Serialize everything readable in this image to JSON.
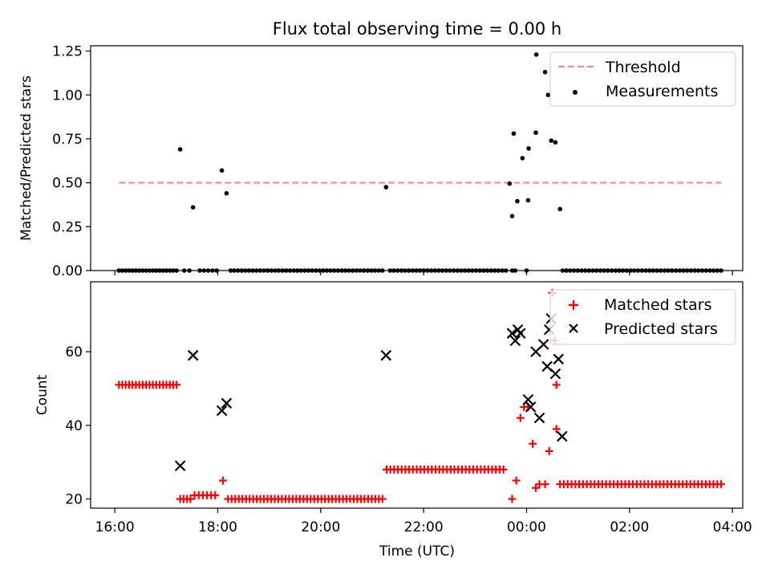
{
  "figure": {
    "title": "Flux total observing time = 0.00 h"
  },
  "chart_data": [
    {
      "type": "scatter",
      "ylabel": "Matched/Predicted stars",
      "xlabel": "",
      "ylim": [
        0,
        1.28
      ],
      "xlim": [
        15.53,
        28.2
      ],
      "y_ticks": [
        0,
        0.25,
        0.5,
        0.75,
        1.0,
        1.25
      ],
      "y_tick_labels": [
        "0.00",
        "0.25",
        "0.50",
        "0.75",
        "1.00",
        "1.25"
      ],
      "x_ticks": [
        16,
        18,
        20,
        22,
        24,
        26,
        28
      ],
      "grid": false,
      "legend": "upper-right",
      "threshold": {
        "name": "Threshold",
        "color": "#ff7f7f",
        "value": 0.5,
        "x_range": [
          16.08,
          27.78
        ]
      },
      "series": [
        {
          "name": "Measurements",
          "color": "#000000",
          "x": [
            17.27,
            17.52,
            18.08,
            18.17,
            21.27,
            23.72,
            23.82,
            23.92,
            24.04,
            23.67,
            23.75,
            24.18,
            24.19,
            24.36,
            24.42,
            24.48,
            24.56,
            24.65,
            24.03
          ],
          "y": [
            0.69,
            0.36,
            0.57,
            0.44,
            0.475,
            0.31,
            0.395,
            0.64,
            0.695,
            0.495,
            0.78,
            0.785,
            1.23,
            1.13,
            1.0,
            0.74,
            0.73,
            0.35,
            0.4
          ],
          "zero_runs": [
            [
              16.08,
              17.2,
              18
            ],
            [
              17.35,
              17.45,
              2
            ],
            [
              17.65,
              17.98,
              5
            ],
            [
              18.25,
              21.2,
              42
            ],
            [
              21.35,
              23.6,
              32
            ],
            [
              23.72,
              23.78,
              2
            ],
            [
              24.0,
              24.0,
              1
            ],
            [
              24.7,
              27.78,
              43
            ]
          ]
        }
      ]
    },
    {
      "type": "scatter",
      "ylabel": "Count",
      "xlabel": "Time (UTC)",
      "ylim": [
        17.5,
        79
      ],
      "xlim": [
        15.53,
        28.2
      ],
      "y_ticks": [
        20,
        40,
        60
      ],
      "y_tick_labels": [
        "20",
        "40",
        "60"
      ],
      "x_ticks": [
        16,
        18,
        20,
        22,
        24,
        26,
        28
      ],
      "x_tick_labels": [
        "16:00",
        "18:00",
        "20:00",
        "22:00",
        "00:00",
        "02:00",
        "04:00"
      ],
      "grid": false,
      "legend": "upper-right",
      "series": [
        {
          "name": "Matched stars",
          "color": "#ff0000",
          "marker": "plus",
          "runs": [
            [
              16.08,
              17.2,
              51,
              18
            ],
            [
              17.27,
              17.47,
              20,
              4
            ],
            [
              17.55,
              17.95,
              21,
              6
            ],
            [
              18.1,
              18.1,
              25,
              1
            ],
            [
              18.2,
              21.2,
              20,
              44
            ],
            [
              21.28,
              23.55,
              28,
              32
            ],
            [
              24.65,
              27.78,
              24,
              43
            ]
          ],
          "x": [
            23.72,
            23.8,
            23.88,
            23.95,
            24.03,
            24.12,
            24.18,
            24.25,
            24.36,
            24.44,
            24.5,
            24.55,
            24.58,
            24.58
          ],
          "y": [
            20,
            25,
            42,
            45,
            45,
            35,
            23,
            24,
            24,
            33,
            76,
            63,
            51,
            39
          ]
        },
        {
          "name": "Predicted stars",
          "color": "#000000",
          "marker": "x",
          "x": [
            17.27,
            17.52,
            18.08,
            18.17,
            21.27,
            23.72,
            23.78,
            23.83,
            23.88,
            24.03,
            24.08,
            24.18,
            24.25,
            24.33,
            24.4,
            24.44,
            24.48,
            24.56,
            24.62,
            24.69
          ],
          "y": [
            29,
            59,
            44,
            46,
            59,
            65,
            63,
            66,
            65,
            47,
            45,
            60,
            42,
            62,
            56,
            66,
            69,
            54,
            58,
            37
          ]
        }
      ]
    }
  ]
}
